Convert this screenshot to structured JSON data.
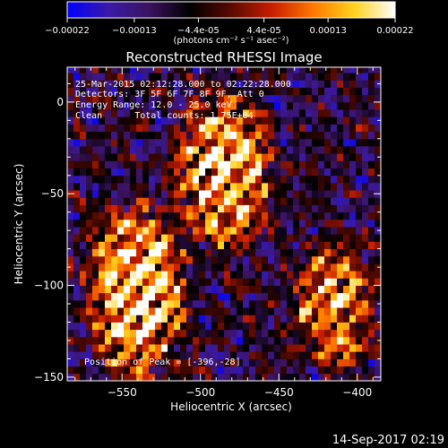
{
  "colorbar": {
    "tick_labels": [
      "-0.00022",
      "-0.00013",
      "-4.4e-05",
      "4.4e-05",
      "0.00013",
      "0.00022"
    ],
    "min": -0.00022,
    "max": 0.00022,
    "unit_label": "(photons cm⁻² s⁻¹ asec⁻²)",
    "colors": [
      "#0000ff",
      "#3a1aa8",
      "#3b1360",
      "#000000",
      "#5a0a00",
      "#c81e00",
      "#ff7800",
      "#ffd21e",
      "#ffffff"
    ]
  },
  "chart_data": {
    "type": "heatmap",
    "title": "Reconstructed RHESSI Image",
    "xlabel": "Heliocentric X (arcsec)",
    "ylabel": "Heliocentric Y (arcsec)",
    "xlim": [
      -585,
      -385
    ],
    "ylim": [
      -152,
      19
    ],
    "x_ticks": [
      -550,
      -500,
      -450,
      -400
    ],
    "y_ticks": [
      0,
      -50,
      -100,
      -150
    ],
    "x_tick_labels": [
      "−550",
      "−500",
      "−450",
      "−400"
    ],
    "y_tick_labels": [
      "0",
      "−50",
      "−100",
      "−150"
    ],
    "grid": false,
    "annotations": [
      "25-Mar-2015 02:12:28.000 to 02:22:28.000",
      "Detectors: 3F 5F 6F 7F 8F 9F, Att 0",
      "Energy Range: 12.0 - 25.0 keV",
      "Clean      Total counts: 1.75E+04"
    ],
    "peak_label": "Position of Peak = [-396,-28]",
    "peak_position": [
      -396,
      -28
    ],
    "pixel_size_arcsec": 4,
    "bright_bands": [
      {
        "x_start": -575,
        "x_end": -510,
        "y_start": -155,
        "y_end": -55,
        "angle_deg": 44,
        "peak": 1.0
      },
      {
        "x_start": -520,
        "x_end": -455,
        "y_start": -85,
        "y_end": 5,
        "angle_deg": 44,
        "peak": 0.95
      },
      {
        "x_start": -445,
        "x_end": -390,
        "y_start": -150,
        "y_end": -75,
        "angle_deg": 44,
        "peak": 0.75
      }
    ],
    "background_level": -0.35
  },
  "footer": {
    "timestamp": "14-Sep-2017 02:19"
  }
}
